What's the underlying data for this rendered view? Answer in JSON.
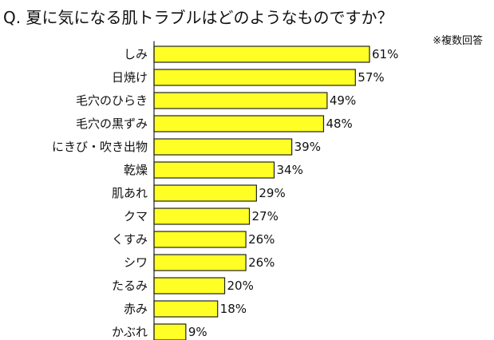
{
  "title": "Q. 夏に気になる肌トラブルはどのようなものですか？",
  "note": "※複数回答",
  "colors": {
    "bar": "#ffff26",
    "bar_stroke": "#222222",
    "axis": "#222222"
  },
  "chart_data": {
    "type": "bar",
    "orientation": "horizontal",
    "categories": [
      "しみ",
      "日焼け",
      "毛穴のひらき",
      "毛穴の黒ずみ",
      "にきび・吹き出物",
      "乾燥",
      "肌あれ",
      "クマ",
      "くすみ",
      "シワ",
      "たるみ",
      "赤み",
      "かぶれ"
    ],
    "values": [
      61,
      57,
      49,
      48,
      39,
      34,
      29,
      27,
      26,
      26,
      20,
      18,
      9
    ],
    "value_labels": [
      "61%",
      "57%",
      "49%",
      "48%",
      "39%",
      "34%",
      "29%",
      "27%",
      "26%",
      "26%",
      "20%",
      "18%",
      "9%"
    ],
    "xlim": [
      0,
      100
    ],
    "grid": false,
    "legend": "none"
  }
}
